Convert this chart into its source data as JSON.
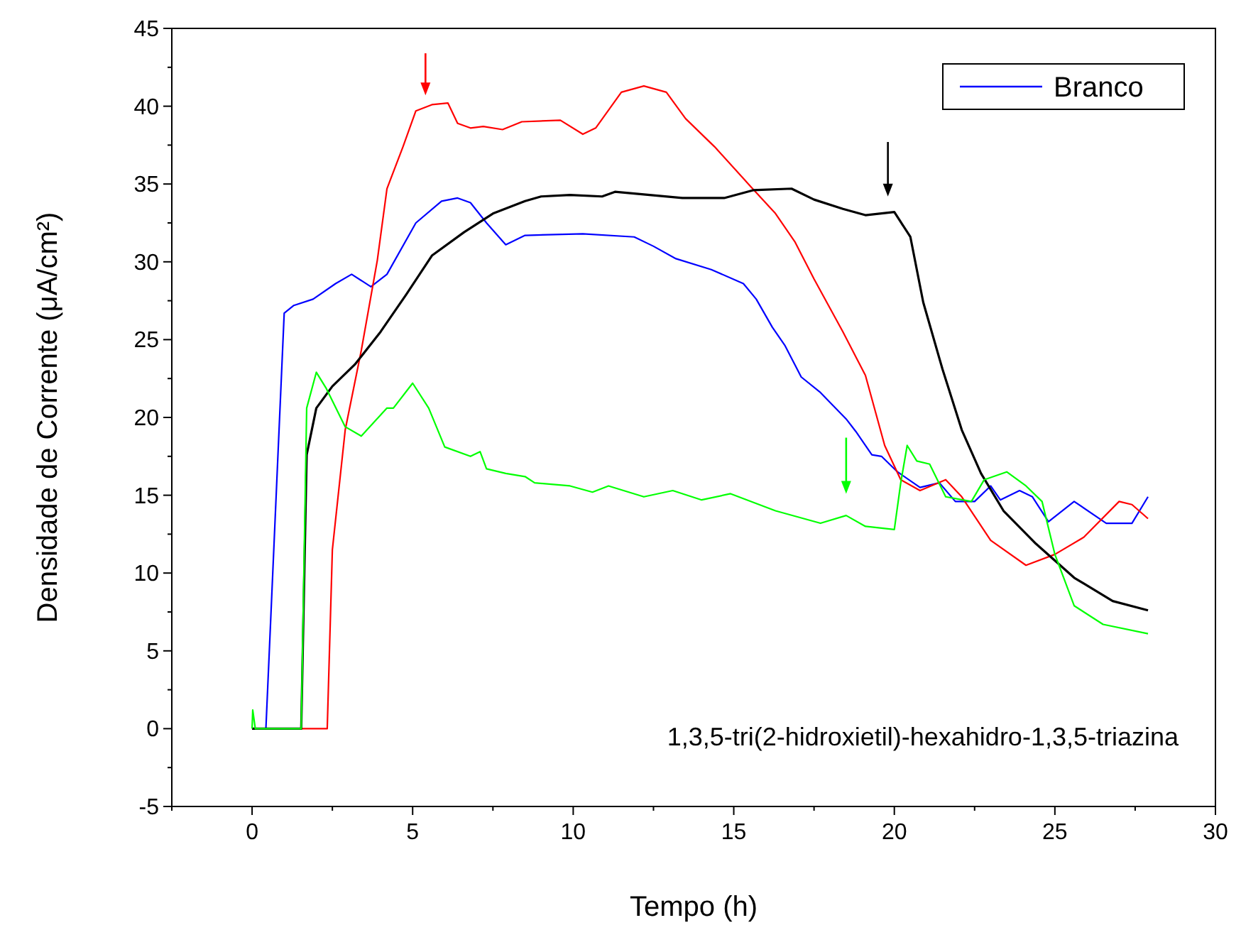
{
  "chart_data": {
    "type": "line",
    "xlabel": "Tempo (h)",
    "ylabel": "Densidade de Corrente (μA/cm²)",
    "annotations": [
      "1,3,5-tri(2-hidroxietil)-hexahidro-1,3,5-triazina"
    ],
    "xlim": [
      -2.5,
      30
    ],
    "ylim": [
      -5,
      45
    ],
    "xticks": [
      {
        "value": -2.5,
        "label": null
      },
      0,
      {
        "value": 2.5,
        "label": null
      },
      5,
      {
        "value": 7.5,
        "label": null
      },
      10,
      {
        "value": 12.5,
        "label": null
      },
      15,
      {
        "value": 17.5,
        "label": null
      },
      20,
      {
        "value": 22.5,
        "label": null
      },
      25,
      {
        "value": 27.5,
        "label": null
      },
      30
    ],
    "yticks": [
      -5,
      {
        "value": -2.5,
        "label": null
      },
      0,
      {
        "value": 2.5,
        "label": null
      },
      5,
      {
        "value": 7.5,
        "label": null
      },
      10,
      {
        "value": 12.5,
        "label": null
      },
      15,
      {
        "value": 17.5,
        "label": null
      },
      20,
      {
        "value": 22.5,
        "label": null
      },
      25,
      {
        "value": 27.5,
        "label": null
      },
      30,
      {
        "value": 32.5,
        "label": null
      },
      35,
      {
        "value": 37.5,
        "label": null
      },
      40,
      {
        "value": 42.5,
        "label": null
      },
      45
    ],
    "legend": "top right",
    "grid": false,
    "marker": "none",
    "line_style": "solid",
    "series": [
      {
        "name": "Branco",
        "color": "#0000ff",
        "x": [
          0,
          0.43,
          1.0,
          1.3,
          1.9,
          2.6,
          3.1,
          3.7,
          4.2,
          5.1,
          5.9,
          6.4,
          6.8,
          7.3,
          7.9,
          8.5,
          10.3,
          11.9,
          12.5,
          13.2,
          14.3,
          15.3,
          15.7,
          16.2,
          16.6,
          17.1,
          17.7,
          18.5,
          18.8,
          19.3,
          19.6,
          20.1,
          20.8,
          21.4,
          21.9,
          22.5,
          23.0,
          23.3,
          23.9,
          24.3,
          24.8,
          25.6,
          26.6,
          27.4,
          27.9
        ],
        "values": [
          0,
          0,
          26.7,
          27.2,
          27.6,
          28.6,
          29.2,
          28.4,
          29.2,
          32.5,
          33.9,
          34.1,
          33.8,
          32.5,
          31.1,
          31.7,
          31.8,
          31.6,
          31.0,
          30.2,
          29.5,
          28.6,
          27.6,
          25.8,
          24.6,
          22.6,
          21.6,
          19.9,
          19.1,
          17.6,
          17.5,
          16.5,
          15.5,
          15.8,
          14.6,
          14.6,
          15.6,
          14.7,
          15.3,
          14.9,
          13.3,
          14.6,
          13.2,
          13.2,
          14.9
        ]
      },
      {
        "color": "#ff0000",
        "x": [
          0,
          2.34,
          2.5,
          2.9,
          3.4,
          3.9,
          4.2,
          4.7,
          5.1,
          5.6,
          6.1,
          6.4,
          6.8,
          7.2,
          7.8,
          8.4,
          9.6,
          10.3,
          10.7,
          11.5,
          12.2,
          12.9,
          13.5,
          14.4,
          15.5,
          16.3,
          16.9,
          17.5,
          18.4,
          19.1,
          19.7,
          20.2,
          20.8,
          21.6,
          22.1,
          23.0,
          24.1,
          25.0,
          25.9,
          27.0,
          27.4,
          27.9
        ],
        "values": [
          0,
          0,
          11.5,
          19.2,
          24.3,
          30.1,
          34.7,
          37.4,
          39.7,
          40.1,
          40.2,
          38.9,
          38.6,
          38.7,
          38.5,
          39.0,
          39.1,
          38.2,
          38.6,
          40.9,
          41.3,
          40.9,
          39.2,
          37.4,
          34.9,
          33.1,
          31.3,
          28.9,
          25.5,
          22.7,
          18.2,
          16.0,
          15.3,
          16.0,
          14.9,
          12.1,
          10.5,
          11.2,
          12.3,
          14.6,
          14.4,
          13.5
        ]
      },
      {
        "color": "#000000",
        "x": [
          0,
          1.53,
          1.7,
          2.0,
          2.5,
          3.2,
          4.0,
          4.8,
          5.6,
          6.6,
          7.5,
          8.5,
          9.0,
          9.9,
          10.9,
          11.3,
          13.4,
          14.7,
          15.6,
          16.8,
          17.5,
          18.4,
          19.1,
          20.0,
          20.5,
          20.9,
          21.5,
          22.1,
          22.7,
          23.4,
          24.4,
          25.6,
          26.8,
          27.9
        ],
        "values": [
          0,
          0,
          17.6,
          20.6,
          22.0,
          23.4,
          25.5,
          27.9,
          30.4,
          31.9,
          33.1,
          33.9,
          34.2,
          34.3,
          34.2,
          34.5,
          34.1,
          34.1,
          34.6,
          34.7,
          34.0,
          33.4,
          33.0,
          33.2,
          31.6,
          27.4,
          23.1,
          19.2,
          16.4,
          14.0,
          11.9,
          9.7,
          8.2,
          7.6
        ]
      },
      {
        "color": "#00ff00",
        "x": [
          0,
          0.02,
          0.1,
          1.53,
          1.7,
          2.0,
          2.3,
          2.9,
          3.4,
          3.8,
          4.2,
          4.4,
          5.0,
          5.5,
          6.0,
          6.8,
          7.1,
          7.3,
          7.9,
          8.5,
          8.8,
          9.9,
          10.6,
          11.1,
          12.2,
          13.1,
          14.0,
          14.9,
          16.3,
          17.7,
          18.5,
          19.1,
          20.0,
          20.2,
          20.4,
          20.7,
          21.1,
          21.6,
          22.4,
          22.8,
          23.5,
          24.1,
          24.6,
          25.0,
          25.6,
          26.5,
          27.9
        ],
        "values": [
          0,
          1.2,
          0,
          0,
          20.6,
          22.9,
          21.9,
          19.4,
          18.8,
          19.7,
          20.6,
          20.6,
          22.2,
          20.6,
          18.1,
          17.5,
          17.8,
          16.7,
          16.4,
          16.2,
          15.8,
          15.6,
          15.2,
          15.6,
          14.9,
          15.3,
          14.7,
          15.1,
          14.0,
          13.2,
          13.7,
          13.0,
          12.8,
          15.8,
          18.2,
          17.2,
          17.0,
          14.9,
          14.6,
          16.0,
          16.5,
          15.6,
          14.6,
          11.2,
          7.9,
          6.7,
          6.1
        ]
      }
    ]
  }
}
